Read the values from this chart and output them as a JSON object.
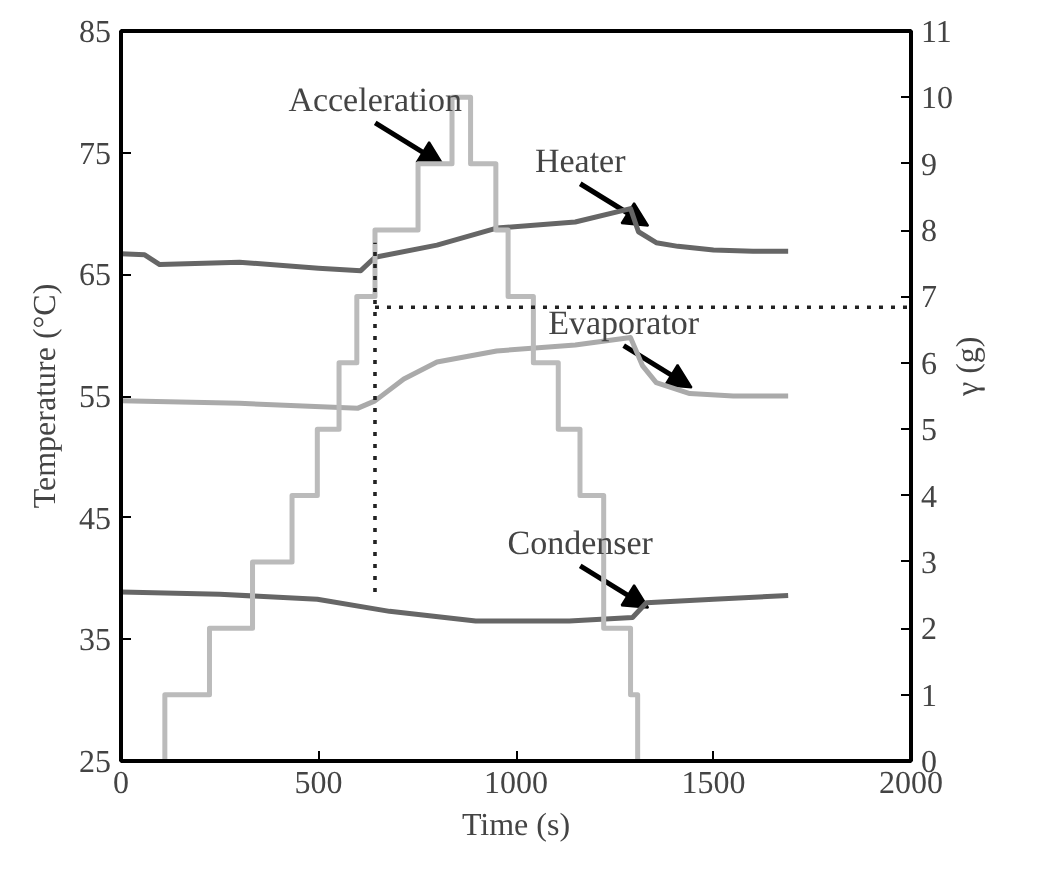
{
  "chart_data": {
    "type": "line",
    "xlabel": "Time (s)",
    "ylabel": "Temperature (°C)",
    "y2label": "γ (g)",
    "xlim": [
      0,
      2000
    ],
    "xticks": [
      0,
      500,
      1000,
      1500,
      2000
    ],
    "ylim": [
      25,
      85
    ],
    "yticks": [
      25,
      35,
      45,
      55,
      65,
      75,
      85
    ],
    "y2lim": [
      0,
      11
    ],
    "y2ticks": [
      0,
      1,
      2,
      3,
      4,
      5,
      6,
      7,
      8,
      9,
      10,
      11
    ],
    "grid": false,
    "series": [
      {
        "color": "#666666",
        "x": [
          0,
          60,
          98,
          300,
          500,
          607,
          643,
          800,
          951,
          1150,
          1290,
          1310,
          1355,
          1410,
          1500,
          1600,
          1689
        ],
        "values": [
          66.7,
          66.6,
          65.8,
          66.0,
          65.5,
          65.3,
          66.4,
          67.4,
          68.8,
          69.3,
          70.4,
          68.5,
          67.6,
          67.3,
          67.0,
          66.9,
          66.9
        ]
      },
      {
        "color": "#aaaaaa",
        "x": [
          0,
          300,
          600,
          643,
          716,
          800,
          951,
          1150,
          1290,
          1320,
          1355,
          1440,
          1550,
          1689
        ],
        "values": [
          54.6,
          54.4,
          54.0,
          54.6,
          56.4,
          57.8,
          58.7,
          59.2,
          59.8,
          57.5,
          56.1,
          55.2,
          55.0,
          55.0
        ]
      },
      {
        "color": "#666666",
        "x": [
          0,
          250,
          497,
          680,
          898,
          1135,
          1295,
          1330,
          1500,
          1689
        ],
        "values": [
          38.9,
          38.7,
          38.3,
          37.3,
          36.5,
          36.5,
          36.8,
          38.0,
          38.3,
          38.6
        ]
      },
      {
        "type": "step",
        "axis": "y2",
        "color": "#bbbbbb",
        "x": [
          111,
          111,
          224,
          333,
          433,
          497,
          552,
          597,
          643,
          752,
          838,
          885,
          949,
          980,
          1044,
          1107,
          1162,
          1222,
          1290,
          1308
        ],
        "values": [
          0,
          1,
          2,
          3,
          4,
          5,
          6,
          7,
          8,
          9,
          10,
          9,
          8,
          7,
          6,
          5,
          4,
          2,
          1,
          0
        ]
      },
      {
        "color": "#222222",
        "line_style": "dotted",
        "x": [
          643,
          643
        ],
        "values": [
          38.9,
          67.6
        ]
      },
      {
        "color": "#222222",
        "line_style": "dotted",
        "x": [
          643,
          2000
        ],
        "values": [
          62.3,
          62.3
        ]
      }
    ],
    "annotations": [
      {
        "text": "Acceleration",
        "x": 836,
        "y": 73.5
      },
      {
        "text": "Heater",
        "x": 1355,
        "y": 68.5
      },
      {
        "text": "Evaporator",
        "x": 1465,
        "y": 55.2
      },
      {
        "text": "Condenser",
        "x": 1355,
        "y": 37.1
      }
    ]
  }
}
